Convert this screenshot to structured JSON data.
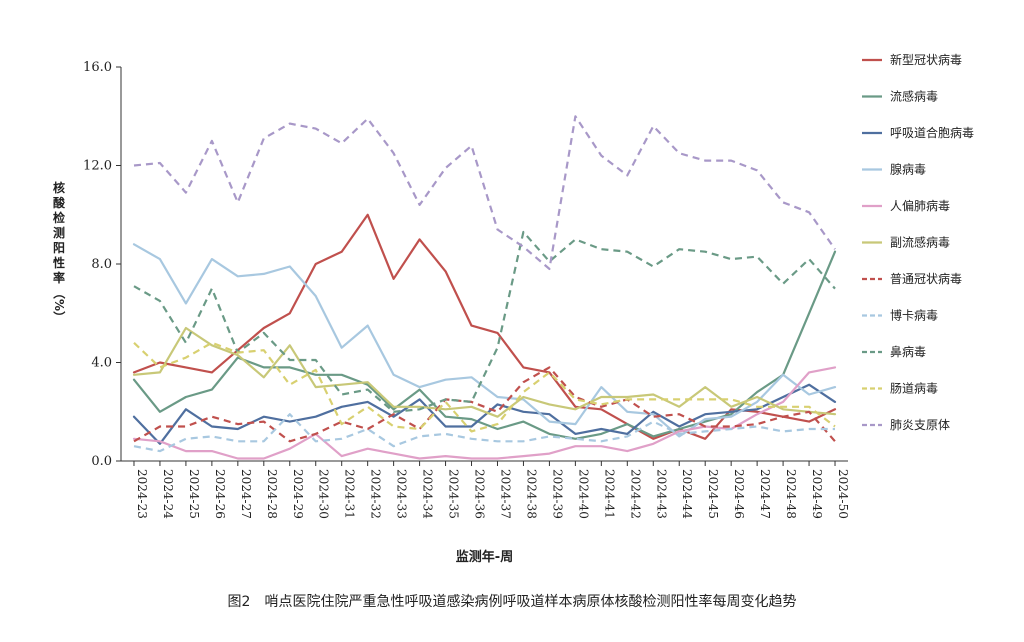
{
  "caption": "图2　哨点医院住院严重急性呼吸道感染病例呼吸道样本病原体核酸检测阳性率每周变化趋势",
  "chart_data": {
    "type": "line",
    "title": "",
    "xlabel": "监测年-周",
    "ylabel": "核酸检测阳性率（%）",
    "ylim": [
      0,
      16
    ],
    "yticks": [
      "0.0",
      "4.0",
      "8.0",
      "12.0",
      "16.0"
    ],
    "grid": false,
    "legend_position": "right",
    "categories": [
      "2024-23",
      "2024-24",
      "2024-25",
      "2024-26",
      "2024-27",
      "2024-28",
      "2024-29",
      "2024-30",
      "2024-31",
      "2024-32",
      "2024-33",
      "2024-34",
      "2024-35",
      "2024-36",
      "2024-37",
      "2024-38",
      "2024-39",
      "2024-40",
      "2024-41",
      "2024-42",
      "2024-43",
      "2024-44",
      "2024-45",
      "2024-46",
      "2024-47",
      "2024-48",
      "2024-49",
      "2024-50"
    ],
    "series": [
      {
        "name": "新型冠状病毒",
        "color": "#c0504d",
        "dash": false,
        "values": [
          3.6,
          4.0,
          3.8,
          3.6,
          4.5,
          5.4,
          6.0,
          8.0,
          8.5,
          10.0,
          7.4,
          9.0,
          7.7,
          5.5,
          5.2,
          3.8,
          3.6,
          2.2,
          2.1,
          1.5,
          0.9,
          1.3,
          0.9,
          2.1,
          2.0,
          1.8,
          1.6,
          2.1
        ]
      },
      {
        "name": "流感病毒",
        "color": "#6a9a86",
        "dash": false,
        "values": [
          3.3,
          2.0,
          2.6,
          2.9,
          4.2,
          3.8,
          3.8,
          3.5,
          3.5,
          3.1,
          2.1,
          2.9,
          1.8,
          1.7,
          1.3,
          1.6,
          1.1,
          0.9,
          1.1,
          1.5,
          1.0,
          1.3,
          1.6,
          1.9,
          2.8,
          3.5,
          6.0,
          8.5
        ]
      },
      {
        "name": "呼吸道合胞病毒",
        "color": "#4f6f9f",
        "dash": false,
        "values": [
          1.8,
          0.7,
          2.1,
          1.4,
          1.3,
          1.8,
          1.6,
          1.8,
          2.2,
          2.4,
          1.8,
          2.5,
          1.4,
          1.4,
          2.3,
          2.0,
          1.9,
          1.1,
          1.3,
          1.1,
          2.0,
          1.4,
          1.9,
          2.0,
          2.1,
          2.6,
          3.1,
          2.4
        ]
      },
      {
        "name": "腺病毒",
        "color": "#a8c8e0",
        "dash": false,
        "values": [
          8.8,
          8.2,
          6.4,
          8.2,
          7.5,
          7.6,
          7.9,
          6.7,
          4.6,
          5.5,
          3.5,
          3.0,
          3.3,
          3.4,
          2.6,
          2.5,
          1.6,
          1.5,
          3.0,
          2.0,
          1.9,
          1.0,
          1.7,
          1.8,
          2.4,
          3.5,
          2.7,
          3.0
        ]
      },
      {
        "name": "人偏肺病毒",
        "color": "#e0a0c8",
        "dash": false,
        "values": [
          0.9,
          0.8,
          0.4,
          0.4,
          0.1,
          0.1,
          0.5,
          1.1,
          0.2,
          0.5,
          0.3,
          0.1,
          0.2,
          0.1,
          0.1,
          0.2,
          0.3,
          0.6,
          0.6,
          0.4,
          0.7,
          1.2,
          1.4,
          1.3,
          1.9,
          2.4,
          3.6,
          3.8
        ]
      },
      {
        "name": "副流感病毒",
        "color": "#c8c878",
        "dash": false,
        "values": [
          3.5,
          3.6,
          5.4,
          4.7,
          4.3,
          3.4,
          4.7,
          3.0,
          3.1,
          3.2,
          2.2,
          2.2,
          2.1,
          2.2,
          1.8,
          2.6,
          2.3,
          2.1,
          2.6,
          2.6,
          2.7,
          2.2,
          3.0,
          2.2,
          2.6,
          2.1,
          2.0,
          1.9
        ]
      },
      {
        "name": "普通冠状病毒",
        "color": "#c0504d",
        "dash": true,
        "values": [
          0.8,
          1.4,
          1.4,
          1.8,
          1.5,
          1.6,
          0.8,
          1.1,
          1.6,
          1.3,
          1.9,
          1.3,
          2.5,
          2.4,
          2.0,
          3.2,
          3.8,
          2.6,
          2.2,
          2.5,
          1.8,
          1.9,
          1.4,
          1.4,
          1.5,
          1.8,
          2.0,
          0.8
        ]
      },
      {
        "name": "博卡病毒",
        "color": "#a8c8e0",
        "dash": true,
        "values": [
          0.6,
          0.4,
          0.9,
          1.0,
          0.8,
          0.8,
          1.9,
          0.8,
          0.9,
          1.3,
          0.6,
          1.0,
          1.1,
          0.9,
          0.8,
          0.8,
          1.0,
          0.9,
          0.8,
          1.0,
          1.6,
          1.1,
          1.2,
          1.3,
          1.4,
          1.2,
          1.3,
          1.3
        ]
      },
      {
        "name": "鼻病毒",
        "color": "#6a9a86",
        "dash": true,
        "values": [
          7.1,
          6.5,
          4.8,
          7.0,
          4.4,
          5.2,
          4.1,
          4.1,
          2.7,
          2.9,
          2.0,
          2.1,
          2.5,
          2.4,
          4.6,
          9.3,
          8.1,
          9.0,
          8.6,
          8.5,
          7.9,
          8.6,
          8.5,
          8.2,
          8.3,
          7.2,
          8.2,
          7.0
        ]
      },
      {
        "name": "肠道病毒",
        "color": "#d8d070",
        "dash": true,
        "values": [
          4.8,
          3.8,
          4.2,
          4.8,
          4.4,
          4.5,
          3.1,
          3.7,
          1.5,
          2.2,
          1.4,
          1.3,
          2.4,
          1.2,
          1.5,
          2.8,
          3.6,
          2.5,
          2.3,
          2.5,
          2.5,
          2.5,
          2.5,
          2.5,
          2.2,
          2.2,
          2.2,
          1.4
        ]
      },
      {
        "name": "肺炎支原体",
        "color": "#a898c8",
        "dash": true,
        "values": [
          12.0,
          12.1,
          10.9,
          13.0,
          10.5,
          13.1,
          13.7,
          13.5,
          12.9,
          13.9,
          12.5,
          10.4,
          11.9,
          12.8,
          9.4,
          8.7,
          7.8,
          14.0,
          12.4,
          11.6,
          13.6,
          12.5,
          12.2,
          12.2,
          11.8,
          10.5,
          10.1,
          8.6
        ]
      }
    ]
  }
}
